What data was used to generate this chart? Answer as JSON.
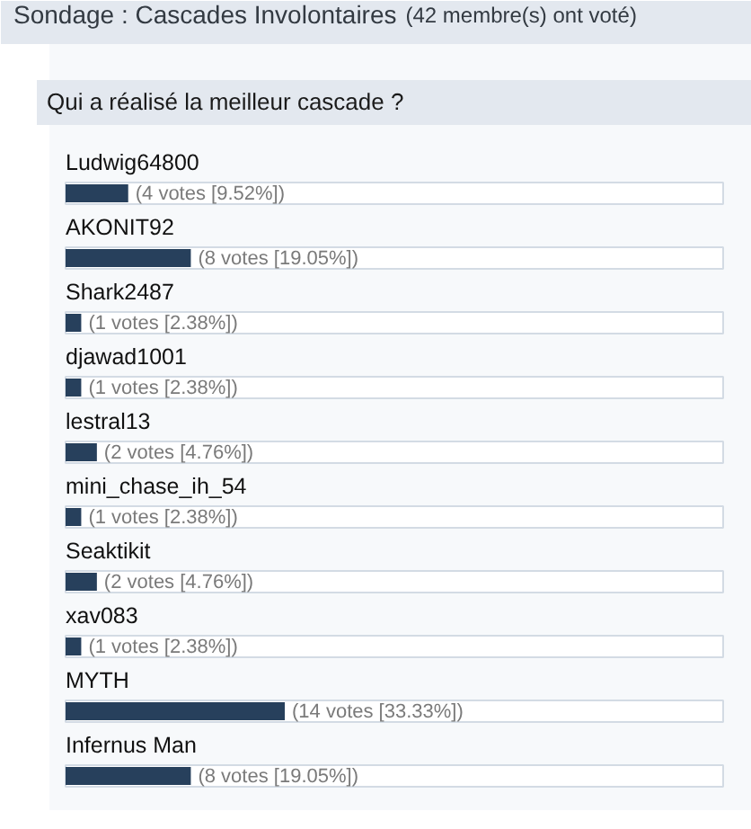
{
  "chart_data": {
    "type": "bar",
    "orientation": "horizontal",
    "title": "Sondage : Cascades Involontaires",
    "annotations": [
      "(42 membre(s) ont voté)"
    ],
    "subtitle": "Qui a réalisé la meilleur cascade ?",
    "categories": [
      "Ludwig64800",
      "AKONIT92",
      "Shark2487",
      "djawad1001",
      "lestral13",
      "mini_chase_ih_54",
      "Seaktikit",
      "xav083",
      "MYTH",
      "Infernus Man"
    ],
    "values": [
      4,
      8,
      1,
      1,
      2,
      1,
      2,
      1,
      14,
      8
    ],
    "value_labels": [
      "(4 votes [9.52%])",
      "(8 votes [19.05%])",
      "(1 votes [2.38%])",
      "(1 votes [2.38%])",
      "(2 votes [4.76%])",
      "(1 votes [2.38%])",
      "(2 votes [4.76%])",
      "(1 votes [2.38%])",
      "(14 votes [33.33%])",
      "(8 votes [19.05%])"
    ],
    "color": "#27405c",
    "tick_labels": "y"
  }
}
